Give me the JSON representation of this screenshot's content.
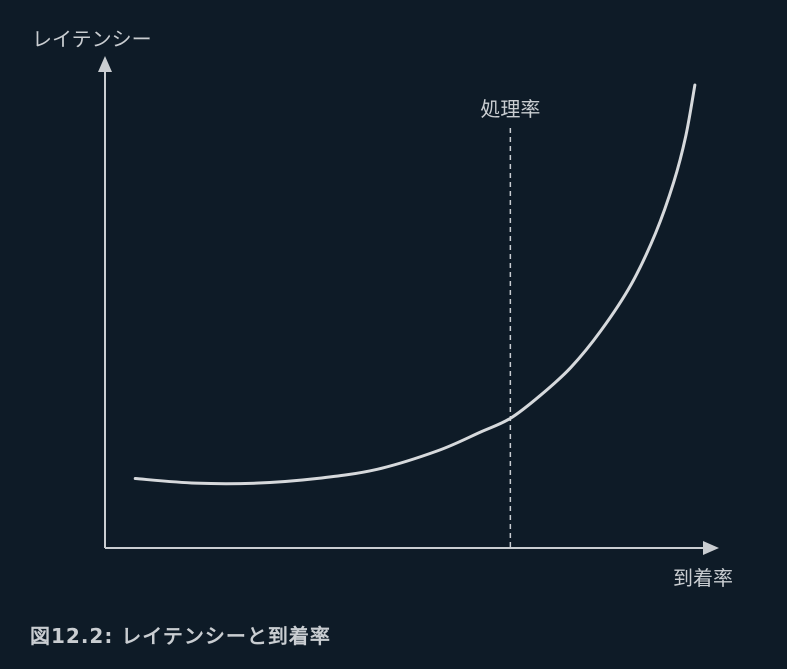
{
  "chart_data": {
    "type": "line",
    "title": "",
    "ylabel": "レイテンシー",
    "xlabel": "到着率",
    "annotations": [
      {
        "label": "処理率",
        "x": 0.67,
        "style": "dashed-vertical"
      }
    ],
    "series": [
      {
        "x": [
          0.05,
          0.15,
          0.25,
          0.35,
          0.45,
          0.55,
          0.62,
          0.67,
          0.72,
          0.77,
          0.82,
          0.87,
          0.91,
          0.94,
          0.96,
          0.975
        ],
        "values": [
          0.15,
          0.14,
          0.14,
          0.15,
          0.17,
          0.21,
          0.25,
          0.28,
          0.33,
          0.39,
          0.47,
          0.57,
          0.68,
          0.79,
          0.89,
          1.0
        ]
      }
    ],
    "xlim": [
      0,
      1
    ],
    "ylim": [
      0,
      1
    ],
    "grid": false,
    "colors": {
      "background": "#0e1b27",
      "axis": "#c9cdd1",
      "line": "#d6d9dc",
      "text": "#c9cdd1"
    }
  },
  "caption": "図12.2: レイテンシーと到着率"
}
